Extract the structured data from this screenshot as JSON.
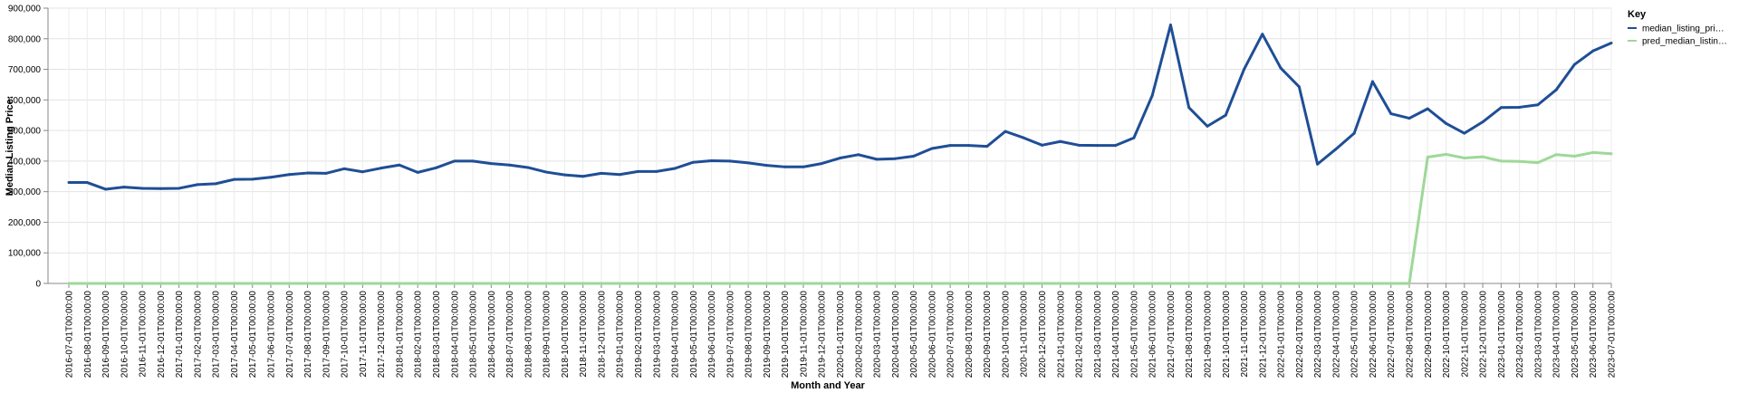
{
  "chart_data": {
    "type": "line",
    "xlabel": "Month and Year",
    "ylabel": "Median Listing Price:",
    "ylim": [
      0,
      900000
    ],
    "yticks": [
      0,
      100000,
      200000,
      300000,
      400000,
      500000,
      600000,
      700000,
      800000,
      900000
    ],
    "ytick_labels": [
      "0",
      "100,000",
      "200,000",
      "300,000",
      "400,000",
      "500,000",
      "600,000",
      "700,000",
      "800,000",
      "900,000"
    ],
    "grid": true,
    "legend_title": "Key",
    "legend_position": "right",
    "categories": [
      "2016-07-01T00:00:00",
      "2016-08-01T00:00:00",
      "2016-09-01T00:00:00",
      "2016-10-01T00:00:00",
      "2016-11-01T00:00:00",
      "2016-12-01T00:00:00",
      "2017-01-01T00:00:00",
      "2017-02-01T00:00:00",
      "2017-03-01T00:00:00",
      "2017-04-01T00:00:00",
      "2017-05-01T00:00:00",
      "2017-06-01T00:00:00",
      "2017-07-01T00:00:00",
      "2017-08-01T00:00:00",
      "2017-09-01T00:00:00",
      "2017-10-01T00:00:00",
      "2017-11-01T00:00:00",
      "2017-12-01T00:00:00",
      "2018-01-01T00:00:00",
      "2018-02-01T00:00:00",
      "2018-03-01T00:00:00",
      "2018-04-01T00:00:00",
      "2018-05-01T00:00:00",
      "2018-06-01T00:00:00",
      "2018-07-01T00:00:00",
      "2018-08-01T00:00:00",
      "2018-09-01T00:00:00",
      "2018-10-01T00:00:00",
      "2018-11-01T00:00:00",
      "2018-12-01T00:00:00",
      "2019-01-01T00:00:00",
      "2019-02-01T00:00:00",
      "2019-03-01T00:00:00",
      "2019-04-01T00:00:00",
      "2019-05-01T00:00:00",
      "2019-06-01T00:00:00",
      "2019-07-01T00:00:00",
      "2019-08-01T00:00:00",
      "2019-09-01T00:00:00",
      "2019-10-01T00:00:00",
      "2019-11-01T00:00:00",
      "2019-12-01T00:00:00",
      "2020-01-01T00:00:00",
      "2020-02-01T00:00:00",
      "2020-03-01T00:00:00",
      "2020-04-01T00:00:00",
      "2020-05-01T00:00:00",
      "2020-06-01T00:00:00",
      "2020-07-01T00:00:00",
      "2020-08-01T00:00:00",
      "2020-09-01T00:00:00",
      "2020-10-01T00:00:00",
      "2020-11-01T00:00:00",
      "2020-12-01T00:00:00",
      "2021-01-01T00:00:00",
      "2021-02-01T00:00:00",
      "2021-03-01T00:00:00",
      "2021-04-01T00:00:00",
      "2021-05-01T00:00:00",
      "2021-06-01T00:00:00",
      "2021-07-01T00:00:00",
      "2021-08-01T00:00:00",
      "2021-09-01T00:00:00",
      "2021-10-01T00:00:00",
      "2021-11-01T00:00:00",
      "2021-12-01T00:00:00",
      "2022-01-01T00:00:00",
      "2022-02-01T00:00:00",
      "2022-03-01T00:00:00",
      "2022-04-01T00:00:00",
      "2022-05-01T00:00:00",
      "2022-06-01T00:00:00",
      "2022-07-01T00:00:00",
      "2022-08-01T00:00:00",
      "2022-09-01T00:00:00",
      "2022-10-01T00:00:00",
      "2022-11-01T00:00:00",
      "2022-12-01T00:00:00",
      "2023-01-01T00:00:00",
      "2023-02-01T00:00:00",
      "2023-03-01T00:00:00",
      "2023-04-01T00:00:00",
      "2023-05-01T00:00:00",
      "2023-06-01T00:00:00",
      "2023-07-01T00:00:00"
    ],
    "series": [
      {
        "name": "median_listing_pri…",
        "color": "#1f4e96",
        "values": [
          330000,
          330000,
          308000,
          315000,
          311000,
          310000,
          311000,
          323000,
          326000,
          340000,
          341000,
          347000,
          356000,
          361000,
          360000,
          375000,
          365000,
          377000,
          387000,
          363000,
          378000,
          400000,
          400000,
          392000,
          387000,
          379000,
          364000,
          355000,
          350000,
          360000,
          356000,
          366000,
          366000,
          376000,
          396000,
          401000,
          400000,
          394000,
          386000,
          381000,
          381000,
          392000,
          410000,
          421000,
          406000,
          408000,
          416000,
          441000,
          451000,
          451000,
          448000,
          497000,
          476000,
          452000,
          464000,
          452000,
          451000,
          451000,
          476000,
          614000,
          845000,
          575000,
          514000,
          550000,
          700000,
          815000,
          704000,
          643000,
          390000,
          439000,
          491000,
          660000,
          555000,
          540000,
          571000,
          523000,
          491000,
          528000,
          575000,
          576000,
          584000,
          633000,
          716000,
          760000,
          786000
        ]
      },
      {
        "name": "pred_median_listin…",
        "color": "#9ed898",
        "values": [
          0,
          0,
          0,
          0,
          0,
          0,
          0,
          0,
          0,
          0,
          0,
          0,
          0,
          0,
          0,
          0,
          0,
          0,
          0,
          0,
          0,
          0,
          0,
          0,
          0,
          0,
          0,
          0,
          0,
          0,
          0,
          0,
          0,
          0,
          0,
          0,
          0,
          0,
          0,
          0,
          0,
          0,
          0,
          0,
          0,
          0,
          0,
          0,
          0,
          0,
          0,
          0,
          0,
          0,
          0,
          0,
          0,
          0,
          0,
          0,
          0,
          0,
          0,
          0,
          0,
          0,
          0,
          0,
          0,
          0,
          0,
          0,
          0,
          0,
          413000,
          422000,
          410000,
          414000,
          400000,
          399000,
          395000,
          421000,
          416000,
          428000,
          424000
        ]
      }
    ]
  }
}
